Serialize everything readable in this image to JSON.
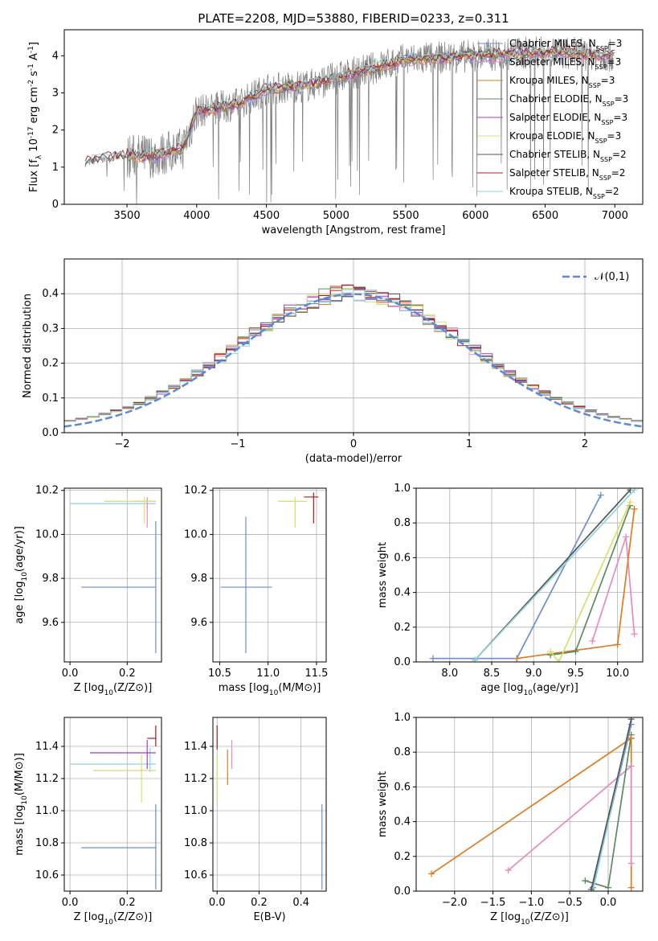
{
  "figure_title": "PLATE=2208, MJD=53880, FIBERID=0233, z=0.311",
  "legend_models": [
    "Chabrier MILES, N_SSP=3",
    "Salpeter MILES, N_SSP=3",
    "Kroupa MILES, N_SSP=3",
    "Chabrier ELODIE, N_SSP=3",
    "Salpeter ELODIE, N_SSP=3",
    "Kroupa ELODIE, N_SSP=3",
    "Chabrier STELIB, N_SSP=2",
    "Salpeter STELIB, N_SSP=2",
    "Kroupa STELIB, N_SSP=2"
  ],
  "model_colors": [
    "#6a8fd6",
    "#e58bc4",
    "#e07b20",
    "#5b8a5e",
    "#a03cc8",
    "#d8e06a",
    "#555555",
    "#b01a1a",
    "#8fd3dc"
  ],
  "chart_data": [
    {
      "type": "line",
      "xlabel": "wavelength [Angstrom, rest frame]",
      "ylabel": "Flux [f_λ 10^-17 erg cm^-2 s^-1 A^-1]",
      "xlim": [
        3050,
        7200
      ],
      "ylim": [
        0,
        4.7
      ],
      "xticks": [
        3500,
        4000,
        4500,
        5000,
        5500,
        6000,
        6500,
        7000
      ],
      "yticks": [
        0,
        1,
        2,
        3,
        4
      ],
      "legend": [
        "Chabrier MILES, N_SSP=3",
        "Salpeter MILES, N_SSP=3",
        "Kroupa MILES, N_SSP=3",
        "Chabrier ELODIE, N_SSP=3",
        "Salpeter ELODIE, N_SSP=3",
        "Kroupa ELODIE, N_SSP=3",
        "Chabrier STELIB, N_SSP=2",
        "Salpeter STELIB, N_SSP=2",
        "Kroupa STELIB, N_SSP=2"
      ],
      "legend_position": "upper right",
      "data_trend": {
        "x": [
          3200,
          3300,
          3500,
          3700,
          3900,
          4000,
          4300,
          4500,
          4800,
          5000,
          5500,
          6000,
          6500,
          7000
        ],
        "y": [
          1.1,
          1.2,
          1.3,
          1.3,
          1.5,
          2.5,
          2.7,
          3.1,
          3.2,
          3.4,
          3.9,
          4.0,
          4.1,
          4.0
        ]
      },
      "grid": false
    },
    {
      "type": "histogram",
      "xlabel": "(data-model)/error",
      "ylabel": "Normed distribution",
      "xlim": [
        -2.5,
        2.5
      ],
      "ylim": [
        0,
        0.5
      ],
      "xticks": [
        -2,
        -1,
        0,
        1,
        2
      ],
      "yticks": [
        0.0,
        0.1,
        0.2,
        0.3,
        0.4
      ],
      "reference_curve": "𝒩(0,1)",
      "legend_position": "upper right",
      "grid": true
    },
    {
      "type": "scatter",
      "xlabel": "Z [log10(Z/Z⊙)]",
      "ylabel": "age  [log10(age/yr)]",
      "xlim": [
        -0.02,
        0.32
      ],
      "ylim": [
        9.42,
        10.21
      ],
      "xticks": [
        0.0,
        0.2
      ],
      "yticks": [
        9.6,
        9.8,
        10.0,
        10.2
      ],
      "points": [
        {
          "model": "Chabrier MILES",
          "x": 0.3,
          "y": 9.76,
          "xerr": [
            0.26,
            0.0
          ],
          "yerr": [
            0.3,
            0.3
          ]
        },
        {
          "model": "Kroupa STELIB",
          "x": 0.27,
          "y": 10.14,
          "xerr": [
            0.27,
            0.03
          ],
          "yerr": [
            0.02,
            0.02
          ]
        },
        {
          "model": "Salpeter MILES",
          "x": 0.27,
          "y": 10.15,
          "xerr": [
            0.05,
            0.03
          ],
          "yerr": [
            0.12,
            0.02
          ]
        },
        {
          "model": "Kroupa ELODIE",
          "x": 0.26,
          "y": 10.15,
          "xerr": [
            0.14,
            0.04
          ],
          "yerr": [
            0.1,
            0.02
          ]
        }
      ],
      "grid": true
    },
    {
      "type": "scatter",
      "xlabel": "mass [log10(M/M⊙)]",
      "ylabel": "",
      "xlim": [
        10.43,
        11.6
      ],
      "ylim": [
        9.42,
        10.21
      ],
      "xticks": [
        10.5,
        11.0,
        11.5
      ],
      "yticks": [
        9.6,
        9.8,
        10.0,
        10.2
      ],
      "points": [
        {
          "model": "Chabrier MILES",
          "x": 10.77,
          "y": 9.76,
          "xerr": [
            0.26,
            0.27
          ],
          "yerr": [
            0.3,
            0.32
          ]
        },
        {
          "model": "Kroupa ELODIE",
          "x": 11.28,
          "y": 10.15,
          "xerr": [
            0.18,
            0.12
          ],
          "yerr": [
            0.12,
            0.02
          ]
        },
        {
          "model": "Salpeter STELIB",
          "x": 11.47,
          "y": 10.17,
          "xerr": [
            0.1,
            0.05
          ],
          "yerr": [
            0.12,
            0.02
          ]
        }
      ],
      "grid": true
    },
    {
      "type": "line",
      "xlabel": "age  [log10(age/yr)]",
      "ylabel": "mass weight",
      "xlim": [
        7.6,
        10.3
      ],
      "ylim": [
        0,
        1.0
      ],
      "xticks": [
        8.0,
        8.5,
        9.0,
        9.5,
        10.0
      ],
      "yticks": [
        0.0,
        0.2,
        0.4,
        0.6,
        0.8,
        1.0
      ],
      "series": [
        {
          "name": "Chabrier MILES",
          "x": [
            7.8,
            8.8,
            9.8
          ],
          "y": [
            0.02,
            0.02,
            0.96
          ]
        },
        {
          "name": "Salpeter MILES",
          "x": [
            9.7,
            10.1,
            10.2
          ],
          "y": [
            0.12,
            0.72,
            0.16
          ]
        },
        {
          "name": "Kroupa MILES",
          "x": [
            8.8,
            10.0,
            10.2
          ],
          "y": [
            0.02,
            0.1,
            0.88
          ]
        },
        {
          "name": "Chabrier ELODIE",
          "x": [
            9.2,
            9.5,
            10.15
          ],
          "y": [
            0.04,
            0.06,
            0.9
          ]
        },
        {
          "name": "Kroupa ELODIE",
          "x": [
            9.2,
            9.3,
            10.15
          ],
          "y": [
            0.06,
            0.0,
            0.92
          ]
        },
        {
          "name": "Chabrier STELIB",
          "x": [
            8.3,
            10.15
          ],
          "y": [
            0.01,
            0.99
          ]
        },
        {
          "name": "Kroupa STELIB",
          "x": [
            8.3,
            10.2
          ],
          "y": [
            0.01,
            0.99
          ]
        }
      ],
      "grid": true
    },
    {
      "type": "scatter",
      "xlabel": "Z [log10(Z/Z⊙)]",
      "ylabel": "mass [log10(M/M⊙)]",
      "xlim": [
        -0.02,
        0.32
      ],
      "ylim": [
        10.5,
        11.58
      ],
      "xticks": [
        0.0,
        0.2
      ],
      "yticks": [
        10.6,
        10.8,
        11.0,
        11.2,
        11.4
      ],
      "points": [
        {
          "model": "Chabrier MILES",
          "x": 0.3,
          "y": 10.77,
          "xerr": [
            0.26,
            0.0
          ],
          "yerr": [
            0.26,
            0.27
          ]
        },
        {
          "model": "Kroupa STELIB",
          "x": 0.28,
          "y": 11.29,
          "xerr": [
            0.28,
            0.02
          ],
          "yerr": [
            0.05,
            0.1
          ]
        },
        {
          "model": "Salpeter ELODIE",
          "x": 0.27,
          "y": 11.36,
          "xerr": [
            0.2,
            0.03
          ],
          "yerr": [
            0.1,
            0.08
          ]
        },
        {
          "model": "Kroupa ELODIE",
          "x": 0.25,
          "y": 11.25,
          "xerr": [
            0.17,
            0.05
          ],
          "yerr": [
            0.2,
            0.1
          ]
        },
        {
          "model": "Salpeter STELIB",
          "x": 0.3,
          "y": 11.45,
          "xerr": [
            0.03,
            0.0
          ],
          "yerr": [
            0.05,
            0.08
          ]
        }
      ],
      "grid": true
    },
    {
      "type": "scatter",
      "xlabel": "E(B-V)",
      "ylabel": "",
      "xlim": [
        -0.02,
        0.52
      ],
      "ylim": [
        10.5,
        11.58
      ],
      "xticks": [
        0.0,
        0.2,
        0.4
      ],
      "yticks": [
        10.6,
        10.8,
        11.0,
        11.2,
        11.4
      ],
      "points": [
        {
          "model": "Chabrier MILES",
          "x": 0.5,
          "y": 10.77,
          "yerr": [
            0.26,
            0.27
          ]
        },
        {
          "model": "Salpeter MILES",
          "x": 0.07,
          "y": 11.36,
          "yerr": [
            0.1,
            0.08
          ]
        },
        {
          "model": "Kroupa MILES",
          "x": 0.05,
          "y": 11.28,
          "yerr": [
            0.12,
            0.1
          ]
        },
        {
          "model": "Kroupa ELODIE",
          "x": 0.0,
          "y": 11.25,
          "yerr": [
            0.2,
            0.1
          ]
        },
        {
          "model": "Salpeter STELIB",
          "x": 0.0,
          "y": 11.45,
          "yerr": [
            0.07,
            0.08
          ]
        }
      ],
      "grid": true
    },
    {
      "type": "line",
      "xlabel": "Z [log10(Z/Z⊙)]",
      "ylabel": "mass weight",
      "xlim": [
        -2.5,
        0.45
      ],
      "ylim": [
        0,
        1.0
      ],
      "xticks": [
        -2.0,
        -1.5,
        -1.0,
        -0.5,
        0.0
      ],
      "yticks": [
        0.0,
        0.2,
        0.4,
        0.6,
        0.8,
        1.0
      ],
      "series": [
        {
          "name": "Kroupa MILES",
          "x": [
            -2.3,
            0.3
          ],
          "y": [
            0.1,
            0.88
          ]
        },
        {
          "name": "Salpeter MILES",
          "x": [
            -1.3,
            0.3
          ],
          "y": [
            0.12,
            0.72
          ]
        },
        {
          "name": "Chabrier MILES",
          "x": [
            -0.2,
            0.3
          ],
          "y": [
            0.02,
            0.96
          ]
        },
        {
          "name": "Chabrier ELODIE",
          "x": [
            -0.3,
            0.0,
            0.3
          ],
          "y": [
            0.06,
            0.02,
            0.9
          ]
        },
        {
          "name": "Kroupa STELIB",
          "x": [
            -0.2,
            0.3
          ],
          "y": [
            0.0,
            0.99
          ]
        },
        {
          "name": "Chabrier STELIB",
          "x": [
            -0.22,
            0.3
          ],
          "y": [
            0.01,
            0.99
          ]
        },
        {
          "name": "Kroupa MILES",
          "x": [
            0.3,
            0.3
          ],
          "y": [
            0.02,
            0.88
          ]
        },
        {
          "name": "Salpeter MILES",
          "x": [
            0.3,
            0.3
          ],
          "y": [
            0.16,
            0.72
          ]
        }
      ],
      "grid": true
    }
  ]
}
